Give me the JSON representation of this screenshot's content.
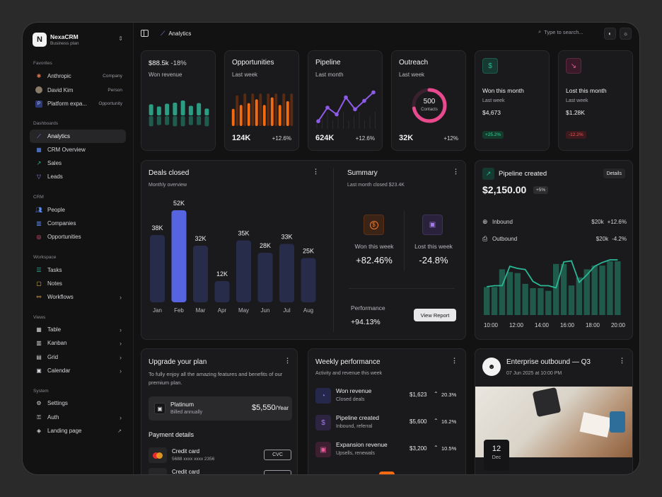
{
  "brand": {
    "logo": "N",
    "name": "NexaCRM",
    "plan": "Business plan",
    "switcher_icon": "chevron-up-down-icon"
  },
  "sidebar": {
    "favorites_label": "Favorites",
    "favorites": [
      {
        "label": "Anthropic",
        "tag": "Company",
        "icon": "asterisk-icon",
        "color": "#d9774a"
      },
      {
        "label": "David Kim",
        "tag": "Person",
        "icon": "avatar"
      },
      {
        "label": "Platform expa...",
        "tag": "Opportunity",
        "icon": "p-badge-icon"
      }
    ],
    "dashboards_label": "Dashboards",
    "dashboards": [
      {
        "label": "Analytics",
        "icon": "line-chart-icon",
        "active": true
      },
      {
        "label": "CRM Overview",
        "icon": "grid-icon"
      },
      {
        "label": "Sales",
        "icon": "trending-up-icon"
      },
      {
        "label": "Leads",
        "icon": "filter-icon"
      }
    ],
    "crm_label": "CRM",
    "crm": [
      {
        "label": "People",
        "icon": "people-icon"
      },
      {
        "label": "Companies",
        "icon": "building-icon"
      },
      {
        "label": "Opportunities",
        "icon": "target-icon"
      }
    ],
    "workspace_label": "Workspace",
    "workspace": [
      {
        "label": "Tasks",
        "icon": "list-check-icon"
      },
      {
        "label": "Notes",
        "icon": "note-icon"
      },
      {
        "label": "Workflows",
        "icon": "workflow-icon",
        "chevron": true
      }
    ],
    "views_label": "Views",
    "views": [
      {
        "label": "Table",
        "icon": "table-icon",
        "chevron": true
      },
      {
        "label": "Kanban",
        "icon": "kanban-icon",
        "chevron": true
      },
      {
        "label": "Grid",
        "icon": "grid-icon",
        "chevron": true
      },
      {
        "label": "Calendar",
        "icon": "calendar-icon",
        "chevron": true
      }
    ],
    "system_label": "System",
    "system": [
      {
        "label": "Settings",
        "icon": "gear-icon"
      },
      {
        "label": "Auth",
        "icon": "key-icon",
        "chevron": true
      },
      {
        "label": "Landing page",
        "icon": "layers-icon",
        "external": true
      }
    ]
  },
  "topbar": {
    "breadcrumb": "Analytics",
    "search_placeholder": "Type to search...",
    "palette_icon": "palette-icon",
    "theme_icon": "sun-icon"
  },
  "kpis": {
    "revenue": {
      "value": "$88.5k",
      "change": "-18%",
      "label": "Won revenue",
      "bars": [
        {
          "top": 0.52,
          "bottom": 0.48
        },
        {
          "top": 0.42,
          "bottom": 0.42
        },
        {
          "top": 0.55,
          "bottom": 0.42
        },
        {
          "top": 0.6,
          "bottom": 0.48
        },
        {
          "top": 0.7,
          "bottom": 0.48
        },
        {
          "top": 0.45,
          "bottom": 0.42
        },
        {
          "top": 0.58,
          "bottom": 0.42
        },
        {
          "top": 0.32,
          "bottom": 0.48
        }
      ],
      "colors": {
        "top": "#2a9d83",
        "bottom": "#1f5c4f"
      }
    },
    "opportunities": {
      "title": "Opportunities",
      "subtitle": "Last week",
      "value": "124K",
      "change": "+12.6%",
      "bars": [
        0.45,
        0.8,
        0.55,
        0.85,
        0.6,
        0.85,
        0.7,
        0.85,
        0.55,
        0.85,
        0.75,
        0.85,
        0.55,
        0.85,
        0.65,
        0.85
      ],
      "color": "#f36a12",
      "bg": "#5a2a12"
    },
    "pipeline": {
      "title": "Pipeline",
      "subtitle": "Last month",
      "value": "624K",
      "change": "+12.6%",
      "points": [
        0.1,
        0.5,
        0.3,
        0.8,
        0.45,
        0.7,
        0.95
      ],
      "color": "#8e5be8"
    },
    "outreach": {
      "title": "Outreach",
      "subtitle": "Last week",
      "value": "32K",
      "change": "+12%",
      "donut_value": "500",
      "donut_label": "Contacts",
      "progress": 0.72,
      "color": "#e84a8e"
    },
    "won_month": {
      "title": "Won this month",
      "subtitle": "Last week",
      "value": "$4,673",
      "pill": "+25.2%",
      "icon": "dollar-icon"
    },
    "lost_month": {
      "title": "Lost this month",
      "subtitle": "Last week",
      "value": "$1.28K",
      "pill": "-12.2%",
      "icon": "trending-down-icon"
    }
  },
  "deals": {
    "title": "Deals closed",
    "subtitle": "Monthly overview",
    "menu_icon": "more-vertical-icon",
    "chart_data": {
      "type": "bar",
      "categories": [
        "Jan",
        "Feb",
        "Mar",
        "Apr",
        "May",
        "Jun",
        "Jul",
        "Aug"
      ],
      "values": [
        38,
        52,
        32,
        12,
        35,
        28,
        33,
        25
      ],
      "labels": [
        "38K",
        "52K",
        "32K",
        "12K",
        "35K",
        "28K",
        "33K",
        "25K"
      ],
      "highlight": "Feb",
      "colors": {
        "bar": "#272c4b",
        "highlight": "#5664e0"
      }
    }
  },
  "summary": {
    "title": "Summary",
    "subtitle": "Last month closed $23.4K",
    "won_label": "Won this week",
    "won_value": "+82.46%",
    "won_icon": "dollar-icon",
    "lost_label": "Lost this week",
    "lost_value": "-24.8%",
    "lost_icon": "wallet-icon",
    "performance_label": "Performance",
    "performance_value": "+94.13%",
    "button": "View Report"
  },
  "pipeline_created": {
    "title": "Pipeline created",
    "details": "Details",
    "value": "$2,150.00",
    "badge": "+5%",
    "inbound": {
      "label": "Inbound",
      "amount": "$20k",
      "change": "+12.6%"
    },
    "outbound": {
      "label": "Outbound",
      "amount": "$20k",
      "change": "-4.2%"
    },
    "chart_data": {
      "type": "bar",
      "x_ticks": [
        "10:00",
        "12:00",
        "14:00",
        "16:00",
        "18:00",
        "20:00"
      ],
      "bars": [
        0.52,
        0.52,
        0.85,
        0.8,
        0.78,
        0.58,
        0.5,
        0.5,
        0.45,
        0.95,
        0.95,
        0.55,
        0.7,
        0.85,
        0.92,
        0.92,
        1.0,
        1.0
      ],
      "line": [
        0.5,
        0.52,
        0.52,
        0.88,
        0.84,
        0.82,
        0.6,
        0.52,
        0.52,
        0.48,
        0.96,
        0.98,
        0.58,
        0.72,
        0.88,
        0.95,
        1.0,
        1.0
      ],
      "colors": {
        "bar": "#1f5a4a",
        "line": "#2bb795"
      }
    }
  },
  "upgrade": {
    "title": "Upgrade your plan",
    "text": "To fully enjoy all the amazing features and benefits of our premium plan.",
    "plan_name": "Platinum",
    "plan_billing": "Billed annually",
    "plan_price": "$5,550",
    "plan_period": "/Year",
    "payment_title": "Payment details",
    "cards": [
      {
        "name": "Credit card",
        "number": "5688 xxxx xxxx 2356",
        "button": "CVC"
      },
      {
        "name": "Credit card",
        "number": "",
        "button": ""
      }
    ]
  },
  "weekly": {
    "title": "Weekly performance",
    "subtitle": "Activity and revenue this week",
    "rows": [
      {
        "title": "Won revenue",
        "sub": "Closed deals",
        "amount": "$1,623",
        "change": "20.3%",
        "icon": "pie-chart-icon",
        "color": "#6b7ef0",
        "bg": "#25284a"
      },
      {
        "title": "Pipeline created",
        "sub": "Inbound, referral",
        "amount": "$5,600",
        "change": "16.2%",
        "icon": "dollar-icon",
        "color": "#a57af0",
        "bg": "#2c2440"
      },
      {
        "title": "Expansion revenue",
        "sub": "Upsells, renewals",
        "amount": "$3,200",
        "change": "10.5%",
        "icon": "wallet-icon",
        "color": "#e85a9a",
        "bg": "#3d2030"
      }
    ]
  },
  "event": {
    "title": "Enterprise outbound — Q3",
    "date": "07 Jun 2025 at 10:00 PM",
    "day": "12",
    "month": "Dec"
  }
}
